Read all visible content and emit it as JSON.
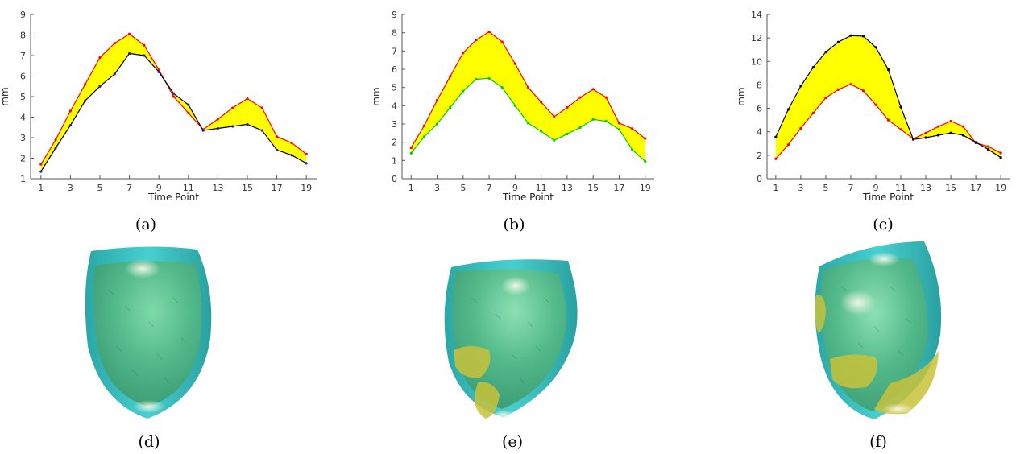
{
  "chart_data": [
    {
      "type": "line",
      "caption": "(a)",
      "xlabel": "Time Point",
      "ylabel": "mm",
      "ylim": [
        1,
        9
      ],
      "yticks": [
        1,
        2,
        3,
        4,
        5,
        6,
        7,
        8,
        9
      ],
      "xlim": [
        0.3,
        19.7
      ],
      "xticks": [
        1,
        3,
        5,
        7,
        9,
        11,
        13,
        15,
        17,
        19
      ],
      "fill_between": true,
      "fill_color": "#ffff00",
      "x": [
        1,
        2,
        3,
        4,
        5,
        6,
        7,
        8,
        9,
        10,
        11,
        12,
        13,
        14,
        15,
        16,
        17,
        18,
        19
      ],
      "series": [
        {
          "color": "#ff0000",
          "values": [
            1.7,
            2.9,
            4.3,
            5.6,
            6.9,
            7.6,
            8.05,
            7.5,
            6.3,
            5.0,
            4.2,
            3.4,
            3.9,
            4.45,
            4.9,
            4.45,
            3.05,
            2.75,
            2.2
          ]
        },
        {
          "color": "#000000",
          "marker_color": "#1f1fbf",
          "values": [
            1.35,
            2.5,
            3.6,
            4.8,
            5.5,
            6.1,
            7.1,
            7.0,
            6.2,
            5.15,
            4.6,
            3.35,
            3.45,
            3.55,
            3.65,
            3.35,
            2.4,
            2.15,
            1.75
          ]
        }
      ]
    },
    {
      "type": "line",
      "caption": "(b)",
      "xlabel": "Time Point",
      "ylabel": "mm",
      "ylim": [
        0,
        9
      ],
      "yticks": [
        0,
        1,
        2,
        3,
        4,
        5,
        6,
        7,
        8,
        9
      ],
      "xlim": [
        0.3,
        19.7
      ],
      "xticks": [
        1,
        3,
        5,
        7,
        9,
        11,
        13,
        15,
        17,
        19
      ],
      "fill_between": true,
      "fill_color": "#ffff00",
      "x": [
        1,
        2,
        3,
        4,
        5,
        6,
        7,
        8,
        9,
        10,
        11,
        12,
        13,
        14,
        15,
        16,
        17,
        18,
        19
      ],
      "series": [
        {
          "color": "#ff0000",
          "values": [
            1.7,
            2.9,
            4.3,
            5.6,
            6.9,
            7.6,
            8.05,
            7.5,
            6.3,
            5.0,
            4.2,
            3.4,
            3.9,
            4.45,
            4.9,
            4.45,
            3.05,
            2.75,
            2.2
          ]
        },
        {
          "color": "#00cc00",
          "values": [
            1.4,
            2.3,
            3.0,
            3.9,
            4.8,
            5.45,
            5.5,
            5.0,
            4.0,
            3.05,
            2.6,
            2.1,
            2.45,
            2.8,
            3.25,
            3.15,
            2.7,
            1.6,
            0.95
          ]
        }
      ]
    },
    {
      "type": "line",
      "caption": "(c)",
      "xlabel": "Time Point",
      "ylabel": "mm",
      "ylim": [
        0,
        14
      ],
      "yticks": [
        0,
        2,
        4,
        6,
        8,
        10,
        12,
        14
      ],
      "xlim": [
        0.3,
        19.7
      ],
      "xticks": [
        1,
        3,
        5,
        7,
        9,
        11,
        13,
        15,
        17,
        19
      ],
      "fill_between": true,
      "fill_color": "#ffff00",
      "x": [
        1,
        2,
        3,
        4,
        5,
        6,
        7,
        8,
        9,
        10,
        11,
        12,
        13,
        14,
        15,
        16,
        17,
        18,
        19
      ],
      "series": [
        {
          "color": "#ff0000",
          "values": [
            1.7,
            2.9,
            4.3,
            5.6,
            6.9,
            7.6,
            8.05,
            7.5,
            6.3,
            5.0,
            4.2,
            3.4,
            3.9,
            4.45,
            4.9,
            4.45,
            3.05,
            2.75,
            2.2
          ]
        },
        {
          "color": "#000000",
          "values": [
            3.55,
            5.9,
            7.9,
            9.5,
            10.8,
            11.65,
            12.2,
            12.15,
            11.2,
            9.3,
            6.1,
            3.35,
            3.5,
            3.7,
            3.9,
            3.7,
            3.1,
            2.5,
            1.8
          ]
        }
      ]
    }
  ],
  "figures": [
    {
      "caption": "(d)",
      "patches": 0
    },
    {
      "caption": "(e)",
      "patches": 2
    },
    {
      "caption": "(f)",
      "patches": 3
    }
  ],
  "colors": {
    "mesh_outer": "#3fc4c4",
    "mesh_inner": "#4fb880",
    "patch": "#c8c23a",
    "highlight": "#e8f0d8"
  }
}
